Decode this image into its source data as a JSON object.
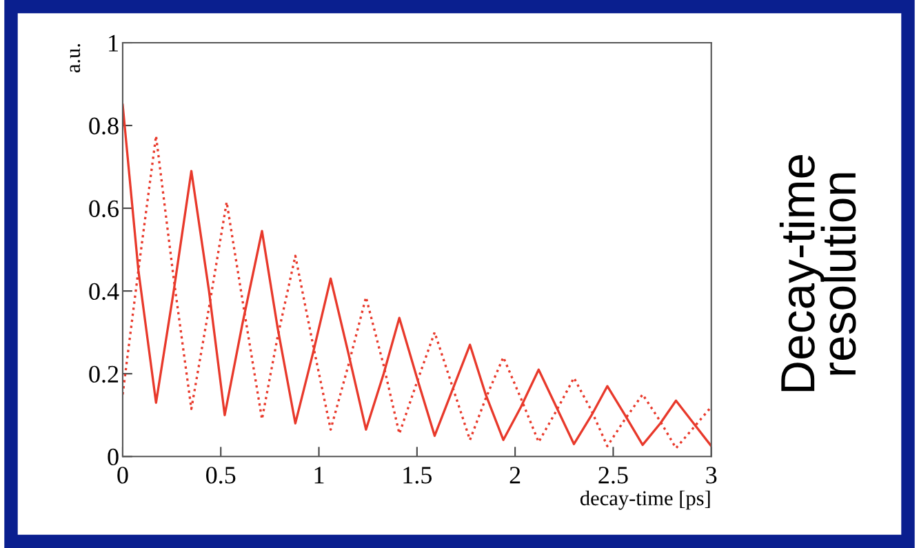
{
  "chart_data": {
    "type": "line",
    "xlabel": "decay-time [ps]",
    "ylabel": "a.u.",
    "annotations": [
      "Decay-time\nresolution"
    ],
    "xlim": [
      0,
      3
    ],
    "ylim": [
      0,
      1
    ],
    "xticks": [
      0,
      0.5,
      1,
      1.5,
      2,
      2.5,
      3
    ],
    "yticks": [
      0,
      0.2,
      0.4,
      0.6,
      0.8,
      1
    ],
    "grid": false,
    "legend": false,
    "marker": "none",
    "series": [
      {
        "color": "#e8392b",
        "line_style": "solid",
        "x": [
          0.0,
          0.08,
          0.17,
          0.26,
          0.35,
          0.44,
          0.52,
          0.61,
          0.71,
          0.79,
          0.88,
          0.97,
          1.06,
          1.15,
          1.24,
          1.33,
          1.41,
          1.5,
          1.59,
          1.68,
          1.77,
          1.85,
          1.94,
          2.03,
          2.12,
          2.21,
          2.3,
          2.39,
          2.47,
          2.56,
          2.65,
          2.74,
          2.82,
          2.91,
          3.0
        ],
        "values": [
          0.85,
          0.45,
          0.13,
          0.4,
          0.69,
          0.4,
          0.1,
          0.32,
          0.545,
          0.31,
          0.08,
          0.25,
          0.43,
          0.25,
          0.065,
          0.2,
          0.335,
          0.19,
          0.05,
          0.16,
          0.27,
          0.15,
          0.04,
          0.12,
          0.21,
          0.12,
          0.03,
          0.1,
          0.17,
          0.1,
          0.028,
          0.08,
          0.135,
          0.08,
          0.025
        ]
      },
      {
        "color": "#e8392b",
        "line_style": "dotted",
        "x": [
          0.0,
          0.08,
          0.17,
          0.26,
          0.35,
          0.44,
          0.53,
          0.62,
          0.71,
          0.79,
          0.88,
          0.97,
          1.06,
          1.15,
          1.24,
          1.33,
          1.41,
          1.5,
          1.59,
          1.68,
          1.77,
          1.85,
          1.94,
          2.03,
          2.12,
          2.21,
          2.3,
          2.39,
          2.47,
          2.56,
          2.65,
          2.74,
          2.82,
          2.91,
          3.0
        ],
        "values": [
          0.15,
          0.45,
          0.775,
          0.43,
          0.115,
          0.36,
          0.615,
          0.35,
          0.09,
          0.29,
          0.485,
          0.27,
          0.065,
          0.22,
          0.385,
          0.22,
          0.055,
          0.18,
          0.3,
          0.17,
          0.04,
          0.14,
          0.24,
          0.14,
          0.035,
          0.11,
          0.19,
          0.11,
          0.025,
          0.09,
          0.15,
          0.085,
          0.02,
          0.07,
          0.12
        ]
      }
    ]
  }
}
